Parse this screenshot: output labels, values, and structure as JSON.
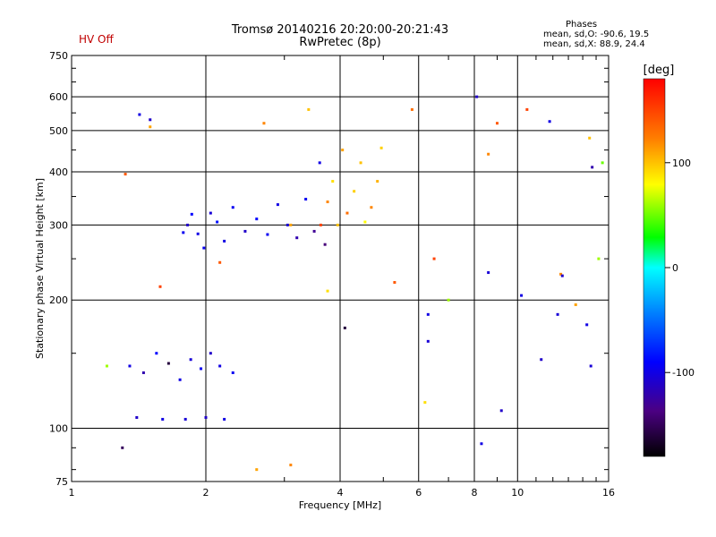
{
  "status_text": "HV Off",
  "title_line1": "Tromsø 20140216 20:20:00-20:21:43",
  "title_line2": "RwPretec (8p)",
  "phases_box": {
    "title": "Phases",
    "line1": "mean, sd,O: -90.6, 19.5",
    "line2": "mean, sd,X:  88.9, 24.4"
  },
  "colors": {
    "status": "#c00000",
    "grid": "#000000",
    "axes": "#000000"
  },
  "chart_data": {
    "type": "scatter",
    "xlabel": "Frequency [MHz]",
    "ylabel": "Stationary phase Virtual Height [km]",
    "xscale": "log",
    "yscale": "log",
    "xlim": [
      1,
      16
    ],
    "ylim": [
      75,
      750
    ],
    "x_ticks": [
      1,
      2,
      4,
      6,
      8,
      10,
      16
    ],
    "x_tick_labels": [
      "1",
      "2",
      "4",
      "6",
      "8",
      "10",
      "16"
    ],
    "y_ticks": [
      75,
      100,
      200,
      300,
      400,
      500,
      600,
      750
    ],
    "y_tick_labels": [
      "75",
      "100",
      "200",
      "300",
      "400",
      "500",
      "600",
      "750"
    ],
    "grid": true,
    "color_scale": {
      "label": "[deg]",
      "range": [
        -180,
        180
      ],
      "ticks": [
        100,
        0,
        -100
      ],
      "tick_labels": [
        "100",
        "0",
        "-100"
      ]
    },
    "series": [
      {
        "points": [
          [
            1.78,
            288,
            -95
          ],
          [
            1.82,
            300,
            -110
          ],
          [
            1.86,
            318,
            -90
          ],
          [
            1.92,
            286,
            -100
          ],
          [
            1.98,
            265,
            -95
          ],
          [
            2.05,
            320,
            -105
          ],
          [
            2.12,
            305,
            -85
          ],
          [
            2.2,
            275,
            -100
          ],
          [
            2.3,
            330,
            -95
          ],
          [
            2.45,
            290,
            -110
          ],
          [
            2.6,
            310,
            -90
          ],
          [
            2.75,
            285,
            -95
          ],
          [
            2.9,
            335,
            -100
          ],
          [
            3.05,
            300,
            -105
          ],
          [
            3.2,
            280,
            -120
          ],
          [
            3.35,
            345,
            -95
          ],
          [
            3.5,
            290,
            -130
          ],
          [
            3.6,
            420,
            -100
          ],
          [
            3.7,
            270,
            -140
          ]
        ]
      },
      {
        "points": [
          [
            3.62,
            300,
            150
          ],
          [
            3.75,
            340,
            120
          ],
          [
            3.85,
            380,
            90
          ],
          [
            3.95,
            300,
            100
          ],
          [
            4.05,
            450,
            110
          ],
          [
            4.15,
            320,
            130
          ],
          [
            4.3,
            360,
            95
          ],
          [
            4.45,
            420,
            100
          ],
          [
            4.55,
            305,
            80
          ],
          [
            4.7,
            330,
            120
          ],
          [
            4.85,
            380,
            105
          ],
          [
            4.95,
            455,
            95
          ]
        ]
      },
      {
        "points": [
          [
            1.35,
            140,
            -100
          ],
          [
            1.45,
            135,
            -120
          ],
          [
            1.55,
            150,
            -90
          ],
          [
            1.65,
            142,
            -160
          ],
          [
            1.75,
            130,
            -100
          ],
          [
            1.85,
            145,
            -105
          ],
          [
            1.95,
            138,
            -95
          ],
          [
            2.05,
            150,
            -110
          ],
          [
            2.15,
            140,
            -100
          ],
          [
            2.3,
            135,
            -95
          ],
          [
            1.4,
            106,
            -110
          ],
          [
            1.6,
            105,
            -100
          ],
          [
            1.8,
            105,
            -105
          ],
          [
            2.0,
            106,
            -110
          ],
          [
            2.2,
            105,
            -100
          ]
        ]
      },
      {
        "points": [
          [
            1.32,
            395,
            140
          ],
          [
            1.5,
            510,
            110
          ],
          [
            1.58,
            215,
            150
          ],
          [
            2.15,
            245,
            140
          ],
          [
            2.7,
            520,
            120
          ],
          [
            3.1,
            300,
            110
          ],
          [
            3.4,
            560,
            100
          ],
          [
            3.75,
            210,
            90
          ],
          [
            5.3,
            220,
            140
          ],
          [
            5.8,
            560,
            130
          ],
          [
            6.5,
            250,
            150
          ],
          [
            7.0,
            200,
            60
          ],
          [
            8.6,
            440,
            120
          ],
          [
            9.0,
            520,
            140
          ],
          [
            10.5,
            560,
            150
          ],
          [
            12.5,
            230,
            120
          ],
          [
            13.5,
            195,
            110
          ],
          [
            14.5,
            480,
            100
          ],
          [
            15.2,
            250,
            60
          ],
          [
            15.5,
            420,
            50
          ],
          [
            1.2,
            140,
            60
          ],
          [
            2.6,
            80,
            110
          ],
          [
            3.1,
            82,
            120
          ],
          [
            6.2,
            115,
            90
          ]
        ]
      },
      {
        "points": [
          [
            8.1,
            600,
            -110
          ],
          [
            8.3,
            92,
            -100
          ],
          [
            8.6,
            232,
            -105
          ],
          [
            10.2,
            205,
            -100
          ],
          [
            11.3,
            145,
            -110
          ],
          [
            11.8,
            525,
            -100
          ],
          [
            12.3,
            185,
            -105
          ],
          [
            12.6,
            228,
            -110
          ],
          [
            14.3,
            175,
            -100
          ],
          [
            14.6,
            140,
            -105
          ],
          [
            14.7,
            410,
            -120
          ],
          [
            9.2,
            110,
            -110
          ],
          [
            6.3,
            185,
            -100
          ],
          [
            6.3,
            160,
            -105
          ],
          [
            4.1,
            172,
            -160
          ],
          [
            1.42,
            545,
            -100
          ],
          [
            1.5,
            530,
            -110
          ],
          [
            1.3,
            90,
            -150
          ]
        ]
      }
    ]
  }
}
